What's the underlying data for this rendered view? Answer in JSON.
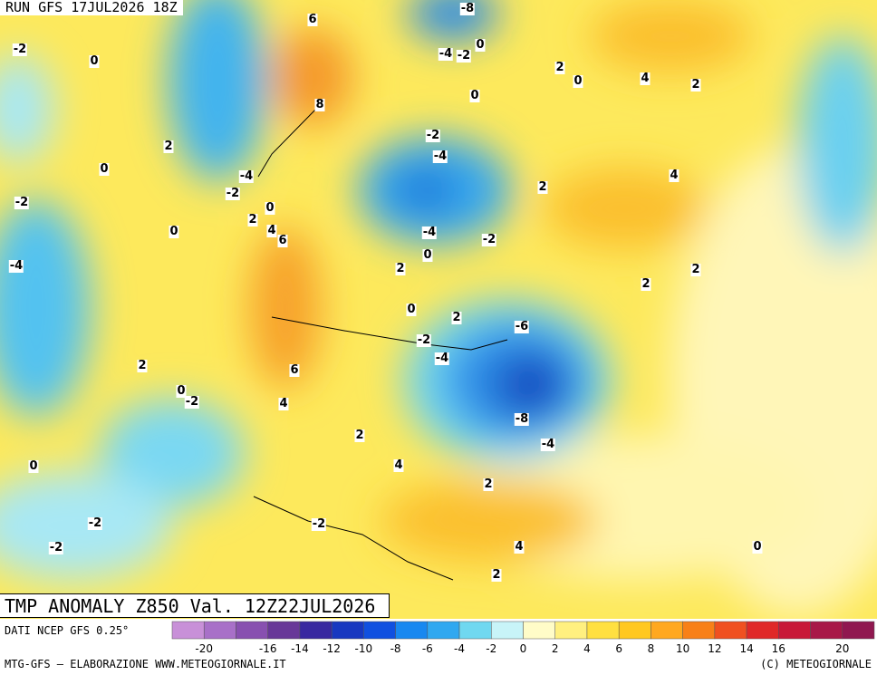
{
  "header": {
    "run": "RUN GFS 17JUL2026 18Z"
  },
  "title": "TMP ANOMALY Z850 Val. 12Z22JUL2026",
  "source": "DATI NCEP GFS 0.25°",
  "footer_left": "MTG-GFS – ELABORAZIONE WWW.METEOGIORNALE.IT",
  "footer_right": "(C) METEOGIORNALE",
  "colorbar": {
    "colors": [
      "#c890d8",
      "#a870c8",
      "#8850b0",
      "#683898",
      "#3828a0",
      "#1838c0",
      "#1050e0",
      "#1888f0",
      "#30a8f0",
      "#70d8f0",
      "#c8f4f8",
      "#fffcc8",
      "#fff080",
      "#ffe040",
      "#ffc820",
      "#ffa820",
      "#f88018",
      "#f05020",
      "#e02828",
      "#c81838",
      "#a81848",
      "#901850"
    ],
    "labels": [
      -20,
      -16,
      -14,
      -12,
      -10,
      -8,
      -6,
      -4,
      -2,
      0,
      2,
      4,
      6,
      8,
      10,
      12,
      14,
      16,
      20
    ]
  },
  "contour_labels": [
    -2,
    0,
    6,
    -8,
    -4,
    -2,
    0,
    2,
    0,
    4,
    2,
    8,
    0,
    2,
    0,
    -2,
    -4,
    -4,
    -2,
    -2,
    0,
    2,
    4,
    2,
    4,
    6,
    0,
    -4,
    -2,
    0,
    2,
    -4,
    2,
    2,
    0,
    2,
    -6,
    -2,
    -4,
    2,
    6,
    0,
    -2,
    4,
    -8,
    -4,
    2,
    4,
    0,
    2,
    -2,
    -2,
    -2,
    4,
    0,
    2
  ]
}
